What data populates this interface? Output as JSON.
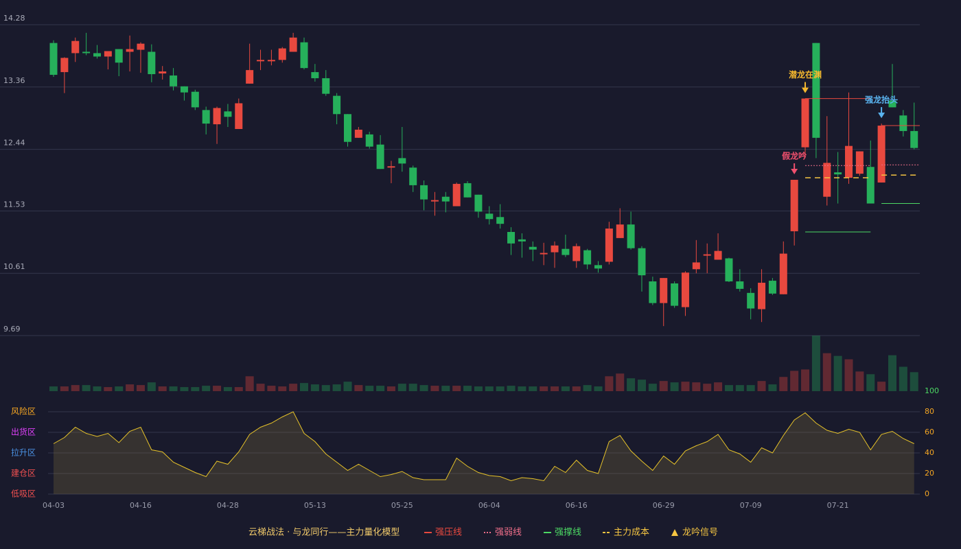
{
  "chart_data": [
    {
      "type": "candlestick",
      "categories": [
        "04-03",
        null,
        null,
        null,
        null,
        null,
        null,
        null,
        "04-16",
        null,
        null,
        null,
        null,
        null,
        null,
        null,
        "04-28",
        null,
        null,
        null,
        null,
        null,
        null,
        null,
        "05-13",
        null,
        null,
        null,
        null,
        null,
        null,
        null,
        "05-25",
        null,
        null,
        null,
        null,
        null,
        null,
        null,
        "06-04",
        null,
        null,
        null,
        null,
        null,
        null,
        null,
        "06-16",
        null,
        null,
        null,
        null,
        null,
        null,
        null,
        "06-29",
        null,
        null,
        null,
        null,
        null,
        null,
        null,
        "07-09",
        null,
        null,
        null,
        null,
        null,
        null,
        null,
        "07-21",
        null,
        null,
        null,
        null,
        null,
        null,
        null
      ],
      "open": [
        14.01,
        13.58,
        13.86,
        13.88,
        13.86,
        13.81,
        13.92,
        13.88,
        13.91,
        13.88,
        13.56,
        13.53,
        13.37,
        13.29,
        13.02,
        12.81,
        13.0,
        12.74,
        13.41,
        13.74,
        13.74,
        13.76,
        13.88,
        14.02,
        13.58,
        13.49,
        13.23,
        12.96,
        12.61,
        12.66,
        12.51,
        12.17,
        12.31,
        12.17,
        11.91,
        11.67,
        11.74,
        11.6,
        11.94,
        11.77,
        11.49,
        11.44,
        11.22,
        11.11,
        11.0,
        10.89,
        10.92,
        10.97,
        10.79,
        10.95,
        10.73,
        10.78,
        11.13,
        11.33,
        10.98,
        10.49,
        10.17,
        10.46,
        10.11,
        10.67,
        10.87,
        10.81,
        10.83,
        10.49,
        10.32,
        10.08,
        10.5,
        10.3,
        11.23,
        12.47,
        14.01,
        11.74,
        12.1,
        12.02,
        12.08,
        12.18,
        11.95,
        13.16,
        12.94,
        12.71
      ],
      "high": [
        14.05,
        13.8,
        14.09,
        14.16,
        13.98,
        13.89,
        13.92,
        14.12,
        14.02,
        13.99,
        13.67,
        13.64,
        13.37,
        13.32,
        13.07,
        13.07,
        13.11,
        13.19,
        14.0,
        13.91,
        13.91,
        13.95,
        14.16,
        14.09,
        13.7,
        13.61,
        13.27,
        12.96,
        12.77,
        12.7,
        12.65,
        12.27,
        12.77,
        12.2,
        11.98,
        11.81,
        11.81,
        11.95,
        11.97,
        11.77,
        11.6,
        11.63,
        11.29,
        11.2,
        11.08,
        11.06,
        11.08,
        11.18,
        11.05,
        10.97,
        10.79,
        11.37,
        11.57,
        11.52,
        11.01,
        10.56,
        10.54,
        10.49,
        10.64,
        11.1,
        11.05,
        11.2,
        10.84,
        10.67,
        10.39,
        10.67,
        10.54,
        11.08,
        11.99,
        13.19,
        14.01,
        12.93,
        12.4,
        13.28,
        12.41,
        12.57,
        12.82,
        13.7,
        13.02,
        13.13
      ],
      "low": [
        13.51,
        13.27,
        13.73,
        13.83,
        13.78,
        13.62,
        13.52,
        13.59,
        13.57,
        13.43,
        13.47,
        13.31,
        13.16,
        13.02,
        12.66,
        12.52,
        12.77,
        12.74,
        13.41,
        13.61,
        13.68,
        13.72,
        13.88,
        13.62,
        13.44,
        13.23,
        12.81,
        12.48,
        12.61,
        12.45,
        12.15,
        11.94,
        12.11,
        11.81,
        11.54,
        11.46,
        11.51,
        11.6,
        11.73,
        11.43,
        11.33,
        11.27,
        10.88,
        10.84,
        10.79,
        10.73,
        10.69,
        10.85,
        10.69,
        10.67,
        10.62,
        10.74,
        11.13,
        10.96,
        10.34,
        10.14,
        9.83,
        10.1,
        9.98,
        10.61,
        10.61,
        10.81,
        10.48,
        10.34,
        9.93,
        9.89,
        10.29,
        10.3,
        11.02,
        12.31,
        12.31,
        11.61,
        11.64,
        11.93,
        12.05,
        11.64,
        11.95,
        13.06,
        12.63,
        12.44
      ],
      "close": [
        13.54,
        13.79,
        14.04,
        13.86,
        13.81,
        13.89,
        13.72,
        13.92,
        14.0,
        13.55,
        13.59,
        13.37,
        13.28,
        13.06,
        12.82,
        13.05,
        12.92,
        13.12,
        13.61,
        13.76,
        13.76,
        13.93,
        14.09,
        13.64,
        13.49,
        13.26,
        12.96,
        12.55,
        12.73,
        12.48,
        12.15,
        12.19,
        12.23,
        11.91,
        11.7,
        11.69,
        11.67,
        11.93,
        11.73,
        11.52,
        11.41,
        11.34,
        11.05,
        11.08,
        10.96,
        10.91,
        11.02,
        10.88,
        11.01,
        10.74,
        10.68,
        11.27,
        11.33,
        10.98,
        10.58,
        10.17,
        10.54,
        10.13,
        10.62,
        10.77,
        10.89,
        10.94,
        10.49,
        10.38,
        10.09,
        10.47,
        10.31,
        10.9,
        11.99,
        13.19,
        12.61,
        12.24,
        12.07,
        12.49,
        12.41,
        11.64,
        12.79,
        13.06,
        12.71,
        12.46
      ],
      "up_color": "#e8493f",
      "down_color": "#26b05b",
      "ylim": [
        9.69,
        14.28
      ],
      "yticks": [
        9.69,
        10.61,
        11.53,
        12.44,
        13.36,
        14.28
      ],
      "grid": true,
      "levels": [
        {
          "name": "强压线",
          "color": "#e8493f",
          "style": "solid",
          "segments": [
            {
              "from": 69,
              "to": 75,
              "value": 13.19
            },
            {
              "from": 76,
              "to": 79,
              "value": 12.79
            }
          ]
        },
        {
          "name": "强弱线",
          "color": "#f06f8a",
          "style": "dotted",
          "segments": [
            {
              "from": 69,
              "to": 75,
              "value": 12.2
            },
            {
              "from": 76,
              "to": 79,
              "value": 12.21
            }
          ]
        },
        {
          "name": "强撑线",
          "color": "#4cd964",
          "style": "solid",
          "segments": [
            {
              "from": 69,
              "to": 75,
              "value": 11.22
            },
            {
              "from": 76,
              "to": 79,
              "value": 11.64
            }
          ]
        },
        {
          "name": "主力成本",
          "color": "#f5c542",
          "style": "dashed",
          "segments": [
            {
              "from": 69,
              "to": 75,
              "value": 12.02
            },
            {
              "from": 76,
              "to": 79,
              "value": 12.06
            }
          ]
        }
      ],
      "annotations": [
        {
          "text": "假龙吟",
          "index": 68,
          "color": "#f0506e"
        },
        {
          "text": "潜龙在渊",
          "index": 69,
          "color": "#f5b82e"
        },
        {
          "text": "强龙抬头",
          "index": 76,
          "color": "#5ab4f0"
        }
      ],
      "legend_title": "云梯战法 · 与龙同行——主力量化模型",
      "signal_legend": {
        "name": "龙吟信号",
        "color": "#f5c542"
      }
    },
    {
      "type": "bar",
      "values": [
        7,
        7,
        9,
        9,
        7,
        6,
        7,
        10,
        9,
        13,
        7,
        7,
        6,
        6,
        8,
        8,
        6,
        6,
        22,
        11,
        8,
        7,
        11,
        12,
        10,
        9,
        10,
        14,
        9,
        8,
        8,
        7,
        11,
        11,
        9,
        8,
        8,
        8,
        8,
        7,
        7,
        7,
        8,
        7,
        7,
        7,
        7,
        7,
        7,
        9,
        7,
        22,
        26,
        19,
        17,
        11,
        15,
        13,
        14,
        13,
        11,
        13,
        9,
        9,
        9,
        15,
        10,
        21,
        30,
        32,
        82,
        56,
        52,
        47,
        29,
        25,
        14,
        53,
        36,
        28
      ],
      "ylim": [
        0,
        82
      ]
    },
    {
      "type": "line",
      "values": [
        49,
        55,
        65,
        59,
        56,
        59,
        50,
        61,
        65,
        43,
        41,
        31,
        26,
        21,
        17,
        32,
        29,
        41,
        58,
        65,
        69,
        75,
        80,
        59,
        51,
        39,
        31,
        23,
        29,
        23,
        17,
        19,
        22,
        16,
        14,
        14,
        14,
        35,
        27,
        21,
        18,
        17,
        13,
        16,
        15,
        13,
        27,
        21,
        33,
        23,
        20,
        51,
        57,
        42,
        32,
        23,
        37,
        29,
        42,
        47,
        51,
        58,
        43,
        39,
        31,
        45,
        40,
        57,
        72,
        79,
        69,
        62,
        59,
        63,
        60,
        43,
        58,
        61,
        54,
        49
      ],
      "color": "#e6c229",
      "ylim": [
        0,
        100
      ],
      "yticks": [
        0,
        20,
        40,
        60,
        80,
        100
      ],
      "ytick_colors": [
        "#f5a623",
        "#f5a623",
        "#f5a623",
        "#f5a623",
        "#f5a623",
        "#4cd964"
      ],
      "zones": [
        {
          "label": "风险区",
          "value": 80,
          "color": "#f5a623"
        },
        {
          "label": "出货区",
          "value": 60,
          "color": "#e040fb"
        },
        {
          "label": "拉升区",
          "value": 40,
          "color": "#4a90e2"
        },
        {
          "label": "建仓区",
          "value": 20,
          "color": "#f05050"
        },
        {
          "label": "低吸区",
          "value": 0,
          "color": "#f05050"
        }
      ]
    }
  ]
}
